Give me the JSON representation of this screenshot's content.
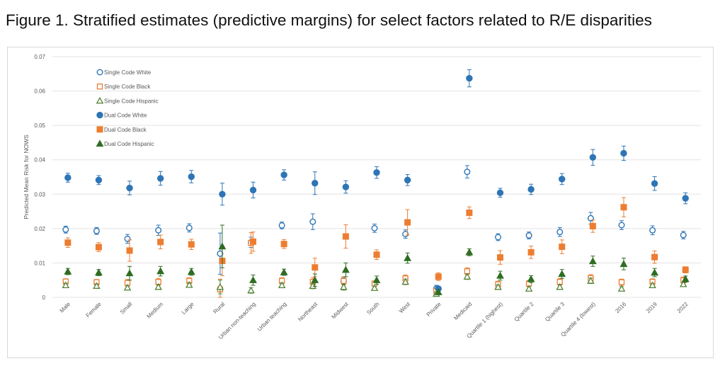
{
  "figure_title": "Figure 1. Stratified estimates (predictive margins) for select factors related to R/E disparities",
  "chart_data": {
    "type": "scatter",
    "title": "",
    "xlabel": "",
    "ylabel": "Predicted Mean Risk for NOWS",
    "ylim": [
      0,
      0.07
    ],
    "yticks": [
      "0",
      "0.01",
      "0.02",
      "0.03",
      "0.04",
      "0.05",
      "0.06",
      "0.07"
    ],
    "grid": true,
    "legend_position": "top-left",
    "error_bars": true,
    "categories": [
      "Male",
      "Female",
      "Small",
      "Medium",
      "Large",
      "Rural",
      "Urban non-teaching",
      "Urban teaching",
      "Northeast",
      "Midwest",
      "South",
      "West",
      "Private",
      "Medicaid",
      "Quartile 1 (highest)",
      "Quartile 2",
      "Quartile 3",
      "Quartile 4 (lowest)",
      "2016",
      "2019",
      "2022"
    ],
    "series": [
      {
        "name": "Single Code White",
        "marker": "circle-open",
        "color": "#2e75b6",
        "values": [
          0.0197,
          0.0193,
          0.017,
          0.0195,
          0.0202,
          0.0127,
          0.016,
          0.0209,
          0.022,
          0.0047,
          0.0201,
          0.0184,
          0.0025,
          0.0365,
          0.0175,
          0.018,
          0.019,
          0.023,
          0.021,
          0.0195,
          0.0181
        ],
        "errors": [
          0.001,
          0.001,
          0.0013,
          0.0015,
          0.0012,
          0.006,
          0.0015,
          0.001,
          0.0023,
          0.001,
          0.0012,
          0.0012,
          0.001,
          0.0018,
          0.001,
          0.001,
          0.0013,
          0.0017,
          0.0013,
          0.0013,
          0.0011
        ]
      },
      {
        "name": "Single Code Black",
        "marker": "square-open",
        "color": "#ed7d31",
        "values": [
          0.0046,
          0.0044,
          0.0042,
          0.0045,
          0.0048,
          0.0023,
          0.0158,
          0.0048,
          0.0045,
          0.0048,
          0.004,
          0.0055,
          0.0018,
          0.0076,
          0.0038,
          0.004,
          0.0045,
          0.0056,
          0.0044,
          0.0045,
          0.005
        ],
        "errors": [
          0.0008,
          0.0008,
          0.001,
          0.001,
          0.0009,
          0.003,
          0.003,
          0.0009,
          0.0012,
          0.0012,
          0.0008,
          0.001,
          0.0009,
          0.001,
          0.0009,
          0.0009,
          0.001,
          0.001,
          0.0009,
          0.0009,
          0.0009
        ]
      },
      {
        "name": "Single Code Hispanic",
        "marker": "triangle-open",
        "color": "#548235",
        "values": [
          0.0035,
          0.0033,
          0.0028,
          0.003,
          0.0036,
          0.003,
          0.002,
          0.0035,
          0.0033,
          0.003,
          0.0027,
          0.0045,
          0.001,
          0.006,
          0.003,
          0.0025,
          0.003,
          0.0048,
          0.0025,
          0.0035,
          0.0038
        ],
        "errors": [
          0.0006,
          0.0006,
          0.0007,
          0.0007,
          0.0007,
          0.002,
          0.0008,
          0.0007,
          0.0008,
          0.0009,
          0.0006,
          0.0008,
          0.0006,
          0.0008,
          0.0006,
          0.0006,
          0.0007,
          0.0008,
          0.0006,
          0.0006,
          0.0006
        ]
      },
      {
        "name": "Dual Code White",
        "marker": "circle-filled",
        "color": "#2e75b6",
        "values": [
          0.0348,
          0.0341,
          0.0318,
          0.0346,
          0.0351,
          0.03,
          0.0312,
          0.0356,
          0.0332,
          0.0321,
          0.0363,
          0.0341,
          0.0025,
          0.0637,
          0.0304,
          0.0314,
          0.0344,
          0.0407,
          0.0419,
          0.0331,
          0.0288
        ],
        "errors": [
          0.0013,
          0.0013,
          0.002,
          0.002,
          0.0018,
          0.0032,
          0.0023,
          0.0015,
          0.0033,
          0.0018,
          0.0017,
          0.0016,
          0.0005,
          0.0025,
          0.0013,
          0.0015,
          0.0016,
          0.0023,
          0.0021,
          0.002,
          0.0016
        ]
      },
      {
        "name": "Dual Code Black",
        "marker": "square-filled",
        "color": "#ed7d31",
        "values": [
          0.0159,
          0.0146,
          0.0136,
          0.0161,
          0.0154,
          0.0106,
          0.0162,
          0.0155,
          0.0087,
          0.0177,
          0.0124,
          0.0218,
          0.006,
          0.0246,
          0.0116,
          0.0131,
          0.0147,
          0.0207,
          0.0262,
          0.0117,
          0.008
        ],
        "errors": [
          0.0014,
          0.0013,
          0.0031,
          0.002,
          0.0015,
          0.0043,
          0.0028,
          0.0013,
          0.0027,
          0.0034,
          0.0014,
          0.0037,
          0.0011,
          0.0017,
          0.002,
          0.0018,
          0.002,
          0.0018,
          0.0028,
          0.0018,
          0.0009
        ]
      },
      {
        "name": "Dual Code Hispanic",
        "marker": "triangle-filled",
        "color": "#2f6d22",
        "values": [
          0.0075,
          0.0072,
          0.007,
          0.0076,
          0.0074,
          0.0148,
          0.005,
          0.0073,
          0.005,
          0.008,
          0.005,
          0.0114,
          0.0015,
          0.0131,
          0.0063,
          0.0053,
          0.0068,
          0.0105,
          0.0097,
          0.0072,
          0.0053
        ],
        "errors": [
          0.0009,
          0.0009,
          0.002,
          0.0014,
          0.001,
          0.0062,
          0.0015,
          0.0009,
          0.0018,
          0.002,
          0.0012,
          0.0015,
          0.0006,
          0.001,
          0.0013,
          0.001,
          0.0013,
          0.0015,
          0.0017,
          0.0012,
          0.0009
        ]
      }
    ]
  }
}
